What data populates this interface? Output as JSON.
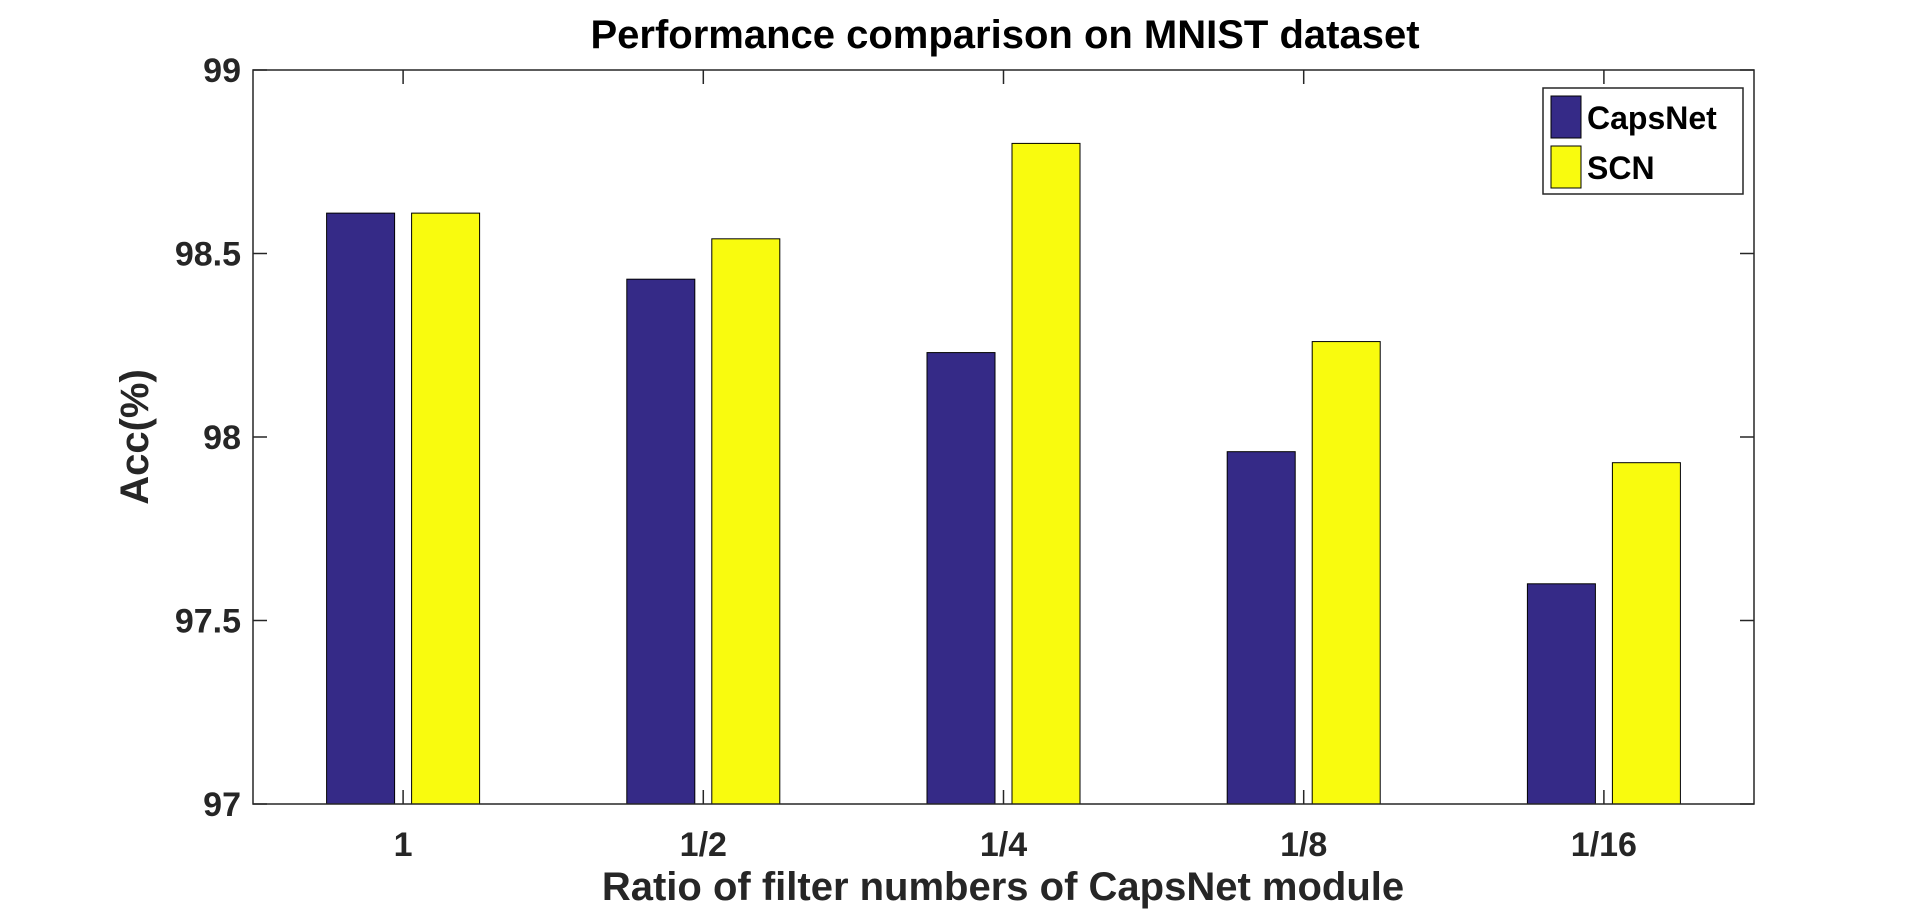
{
  "chart_data": {
    "type": "bar",
    "title": "Performance comparison on MNIST dataset",
    "xlabel": "Ratio of filter numbers of CapsNet module",
    "ylabel": "Acc(%)",
    "categories": [
      "1",
      "1/2",
      "1/4",
      "1/8",
      "1/16"
    ],
    "series": [
      {
        "name": "CapsNet",
        "color": "#352a87",
        "values": [
          98.61,
          98.43,
          98.23,
          97.96,
          97.6
        ]
      },
      {
        "name": "SCN",
        "color": "#f9fb0e",
        "values": [
          98.61,
          98.54,
          98.8,
          98.26,
          97.93
        ]
      }
    ],
    "ylim": [
      97,
      99
    ],
    "yticks": [
      97,
      97.5,
      98,
      98.5,
      99
    ],
    "ytick_labels": [
      "97",
      "97.5",
      "98",
      "98.5",
      "99"
    ],
    "grid": false,
    "legend_position": "top-right"
  }
}
